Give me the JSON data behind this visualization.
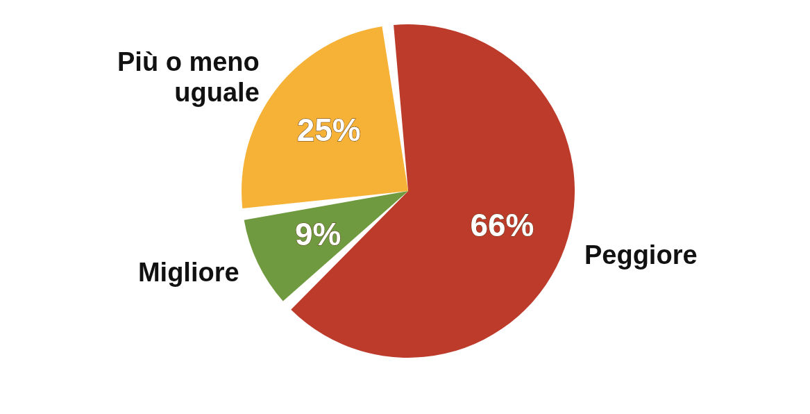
{
  "chart_data": {
    "type": "pie",
    "categories": [
      "Peggiore",
      "Migliore",
      "Più o meno uguale"
    ],
    "values": [
      66,
      9,
      25
    ],
    "colors": [
      "#bd3b2b",
      "#6f9a3f",
      "#f6b236"
    ],
    "value_labels": [
      "66%",
      "9%",
      "25%"
    ],
    "legend": false
  }
}
